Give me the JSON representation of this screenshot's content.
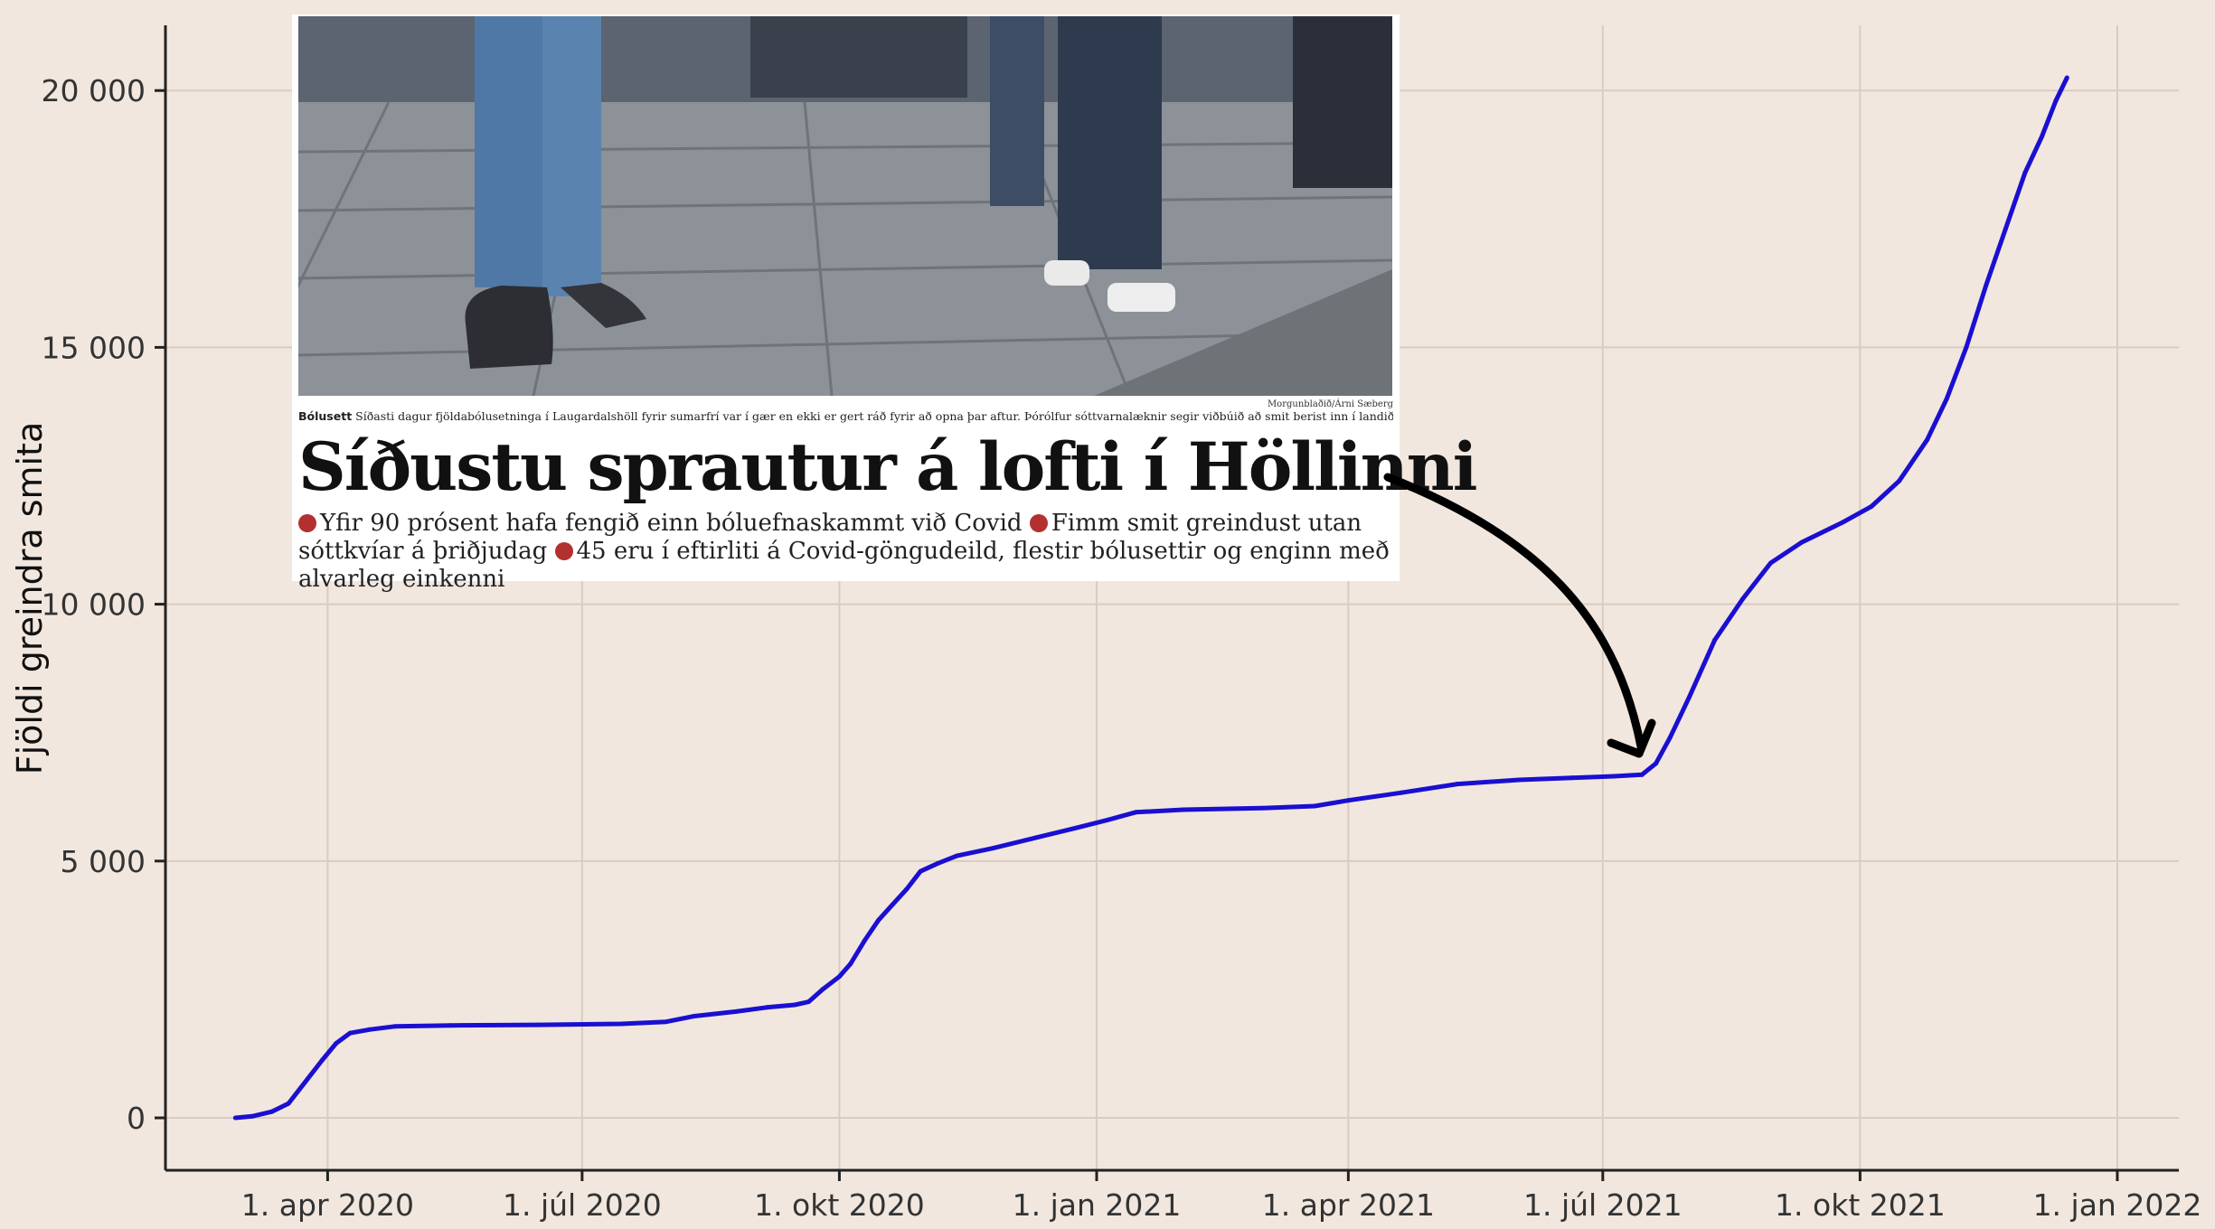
{
  "chart_data": {
    "type": "line",
    "title": "",
    "xlabel": "",
    "ylabel": "Fjöldi greindra smita",
    "x_ticks": [
      {
        "date": "2020-04-01",
        "label": "1. apr 2020"
      },
      {
        "date": "2020-07-01",
        "label": "1. júl 2020"
      },
      {
        "date": "2020-10-01",
        "label": "1. okt 2020"
      },
      {
        "date": "2021-01-01",
        "label": "1. jan 2021"
      },
      {
        "date": "2021-04-01",
        "label": "1. apr 2021"
      },
      {
        "date": "2021-07-01",
        "label": "1. júl 2021"
      },
      {
        "date": "2021-10-01",
        "label": "1. okt 2021"
      },
      {
        "date": "2022-01-01",
        "label": "1. jan 2022"
      }
    ],
    "y_ticks": [
      {
        "value": 0,
        "label": "0"
      },
      {
        "value": 5000,
        "label": "5 000"
      },
      {
        "value": 10000,
        "label": "10 000"
      },
      {
        "value": 15000,
        "label": "15 000"
      },
      {
        "value": 20000,
        "label": "20 000"
      }
    ],
    "xlim": [
      "2020-02-03",
      "2022-01-23"
    ],
    "ylim": [
      -1020,
      21270
    ],
    "grid": true,
    "color": "#1a0fd1",
    "series": [
      {
        "name": "",
        "points": [
          [
            "2020-02-28",
            0
          ],
          [
            "2020-03-05",
            30
          ],
          [
            "2020-03-12",
            120
          ],
          [
            "2020-03-18",
            280
          ],
          [
            "2020-03-24",
            700
          ],
          [
            "2020-03-30",
            1120
          ],
          [
            "2020-04-04",
            1450
          ],
          [
            "2020-04-09",
            1650
          ],
          [
            "2020-04-16",
            1720
          ],
          [
            "2020-04-25",
            1780
          ],
          [
            "2020-05-15",
            1800
          ],
          [
            "2020-06-15",
            1810
          ],
          [
            "2020-07-15",
            1830
          ],
          [
            "2020-07-31",
            1870
          ],
          [
            "2020-08-10",
            1980
          ],
          [
            "2020-08-25",
            2070
          ],
          [
            "2020-09-05",
            2150
          ],
          [
            "2020-09-15",
            2200
          ],
          [
            "2020-09-20",
            2260
          ],
          [
            "2020-09-25",
            2500
          ],
          [
            "2020-10-01",
            2750
          ],
          [
            "2020-10-05",
            3000
          ],
          [
            "2020-10-10",
            3450
          ],
          [
            "2020-10-15",
            3850
          ],
          [
            "2020-10-20",
            4150
          ],
          [
            "2020-10-25",
            4450
          ],
          [
            "2020-10-30",
            4800
          ],
          [
            "2020-11-05",
            4950
          ],
          [
            "2020-11-12",
            5100
          ],
          [
            "2020-11-25",
            5250
          ],
          [
            "2020-12-10",
            5450
          ],
          [
            "2020-12-25",
            5650
          ],
          [
            "2021-01-05",
            5800
          ],
          [
            "2021-01-15",
            5950
          ],
          [
            "2021-02-01",
            6000
          ],
          [
            "2021-03-01",
            6030
          ],
          [
            "2021-03-20",
            6070
          ],
          [
            "2021-04-01",
            6180
          ],
          [
            "2021-04-20",
            6330
          ],
          [
            "2021-05-10",
            6500
          ],
          [
            "2021-06-01",
            6580
          ],
          [
            "2021-06-20",
            6620
          ],
          [
            "2021-07-05",
            6650
          ],
          [
            "2021-07-15",
            6680
          ],
          [
            "2021-07-20",
            6900
          ],
          [
            "2021-07-25",
            7400
          ],
          [
            "2021-08-01",
            8200
          ],
          [
            "2021-08-10",
            9300
          ],
          [
            "2021-08-20",
            10100
          ],
          [
            "2021-08-30",
            10800
          ],
          [
            "2021-09-10",
            11200
          ],
          [
            "2021-09-25",
            11600
          ],
          [
            "2021-10-05",
            11900
          ],
          [
            "2021-10-15",
            12400
          ],
          [
            "2021-10-25",
            13200
          ],
          [
            "2021-11-01",
            14000
          ],
          [
            "2021-11-08",
            15000
          ],
          [
            "2021-11-15",
            16200
          ],
          [
            "2021-11-22",
            17300
          ],
          [
            "2021-11-29",
            18400
          ],
          [
            "2021-12-05",
            19100
          ],
          [
            "2021-12-10",
            19800
          ],
          [
            "2021-12-14",
            20250
          ]
        ]
      }
    ]
  },
  "clipping": {
    "credit": "Morgunblaðið/Árni Sæberg",
    "caption_label": "Bólusett",
    "caption_text": "Síðasti dagur fjöldabólusetninga í Laugardalshöll fyrir sumarfrí var í gær en ekki er gert ráð fyrir að opna þar aftur. Þórólfur sóttvarnalæknir segir viðbúið að smit berist inn í landið.",
    "headline": "Síðustu sprautur á lofti í Höllinni",
    "bullet_1": "Yfir 90 prósent hafa fengið einn bóluefnaskammt við Covid",
    "bullet_2": "Fimm smit greindust utan sóttkvíar á þriðjudag",
    "bullet_3": "45 eru í eftirliti á Covid-göngudeild, flestir bólusettir og enginn með alvarleg einkenni"
  },
  "colors": {
    "line": "#1a0fd1",
    "background": "#f1e7de",
    "bullet_dot": "#b33030"
  }
}
